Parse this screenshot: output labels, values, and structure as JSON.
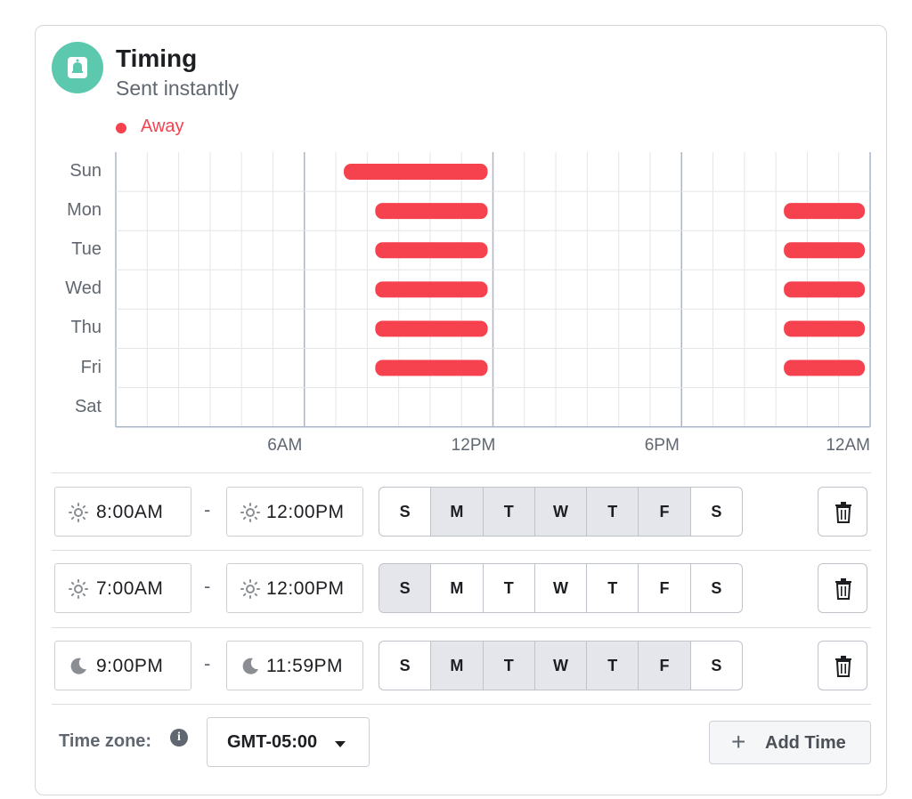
{
  "header": {
    "icon": "bell-icon",
    "title": "Timing",
    "subtitle": "Sent instantly"
  },
  "legend": {
    "label": "Away",
    "color": "#f5424e"
  },
  "chart_data": {
    "type": "schedule",
    "days": [
      "Sun",
      "Mon",
      "Tue",
      "Wed",
      "Thu",
      "Fri",
      "Sat"
    ],
    "x_tick_labels": [
      "6AM",
      "12PM",
      "6PM",
      "12AM"
    ],
    "x_range_hours": [
      0,
      24
    ],
    "grid": true,
    "series": [
      {
        "name": "Away",
        "color": "#f5424e",
        "intervals": [
          {
            "day": "Sun",
            "start": 7,
            "end": 12
          },
          {
            "day": "Mon",
            "start": 8,
            "end": 12
          },
          {
            "day": "Tue",
            "start": 8,
            "end": 12
          },
          {
            "day": "Wed",
            "start": 8,
            "end": 12
          },
          {
            "day": "Thu",
            "start": 8,
            "end": 12
          },
          {
            "day": "Fri",
            "start": 8,
            "end": 12
          },
          {
            "day": "Mon",
            "start": 21,
            "end": 24
          },
          {
            "day": "Tue",
            "start": 21,
            "end": 24
          },
          {
            "day": "Wed",
            "start": 21,
            "end": 24
          },
          {
            "day": "Thu",
            "start": 21,
            "end": 24
          },
          {
            "day": "Fri",
            "start": 21,
            "end": 24
          }
        ]
      }
    ]
  },
  "rules": [
    {
      "start": "8:00AM",
      "start_icon": "sun-icon",
      "end": "12:00PM",
      "end_icon": "sun-icon",
      "separator": "-",
      "days": [
        {
          "label": "S",
          "selected": false
        },
        {
          "label": "M",
          "selected": true
        },
        {
          "label": "T",
          "selected": true
        },
        {
          "label": "W",
          "selected": true
        },
        {
          "label": "T",
          "selected": true
        },
        {
          "label": "F",
          "selected": true
        },
        {
          "label": "S",
          "selected": false
        }
      ]
    },
    {
      "start": "7:00AM",
      "start_icon": "sun-icon",
      "end": "12:00PM",
      "end_icon": "sun-icon",
      "separator": "-",
      "days": [
        {
          "label": "S",
          "selected": true
        },
        {
          "label": "M",
          "selected": false
        },
        {
          "label": "T",
          "selected": false
        },
        {
          "label": "W",
          "selected": false
        },
        {
          "label": "T",
          "selected": false
        },
        {
          "label": "F",
          "selected": false
        },
        {
          "label": "S",
          "selected": false
        }
      ]
    },
    {
      "start": "9:00PM",
      "start_icon": "moon-icon",
      "end": "11:59PM",
      "end_icon": "moon-icon",
      "separator": "-",
      "days": [
        {
          "label": "S",
          "selected": false
        },
        {
          "label": "M",
          "selected": true
        },
        {
          "label": "T",
          "selected": true
        },
        {
          "label": "W",
          "selected": true
        },
        {
          "label": "T",
          "selected": true
        },
        {
          "label": "F",
          "selected": true
        },
        {
          "label": "S",
          "selected": false
        }
      ]
    }
  ],
  "footer": {
    "timezone_label": "Time zone:",
    "info_icon": "info-icon",
    "info_glyph": "i",
    "timezone_value": "GMT-05:00",
    "add_icon": "plus-icon",
    "add_glyph": "+",
    "add_label": "Add Time"
  }
}
